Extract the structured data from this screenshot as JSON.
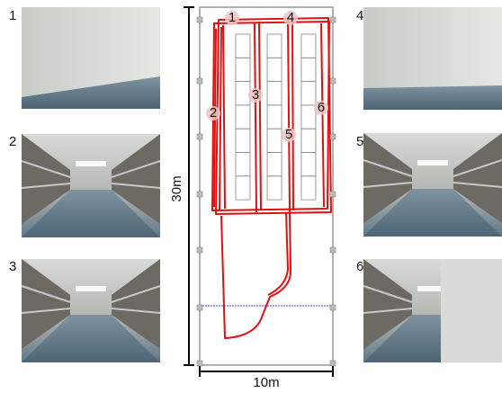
{
  "photos_left": [
    {
      "label": "1"
    },
    {
      "label": "2"
    },
    {
      "label": "3"
    }
  ],
  "photos_right": [
    {
      "label": "4"
    },
    {
      "label": "5"
    },
    {
      "label": "6"
    }
  ],
  "map": {
    "markers": [
      "1",
      "4",
      "2",
      "3",
      "5",
      "6"
    ],
    "height_label": "30m",
    "width_label": "10m"
  }
}
